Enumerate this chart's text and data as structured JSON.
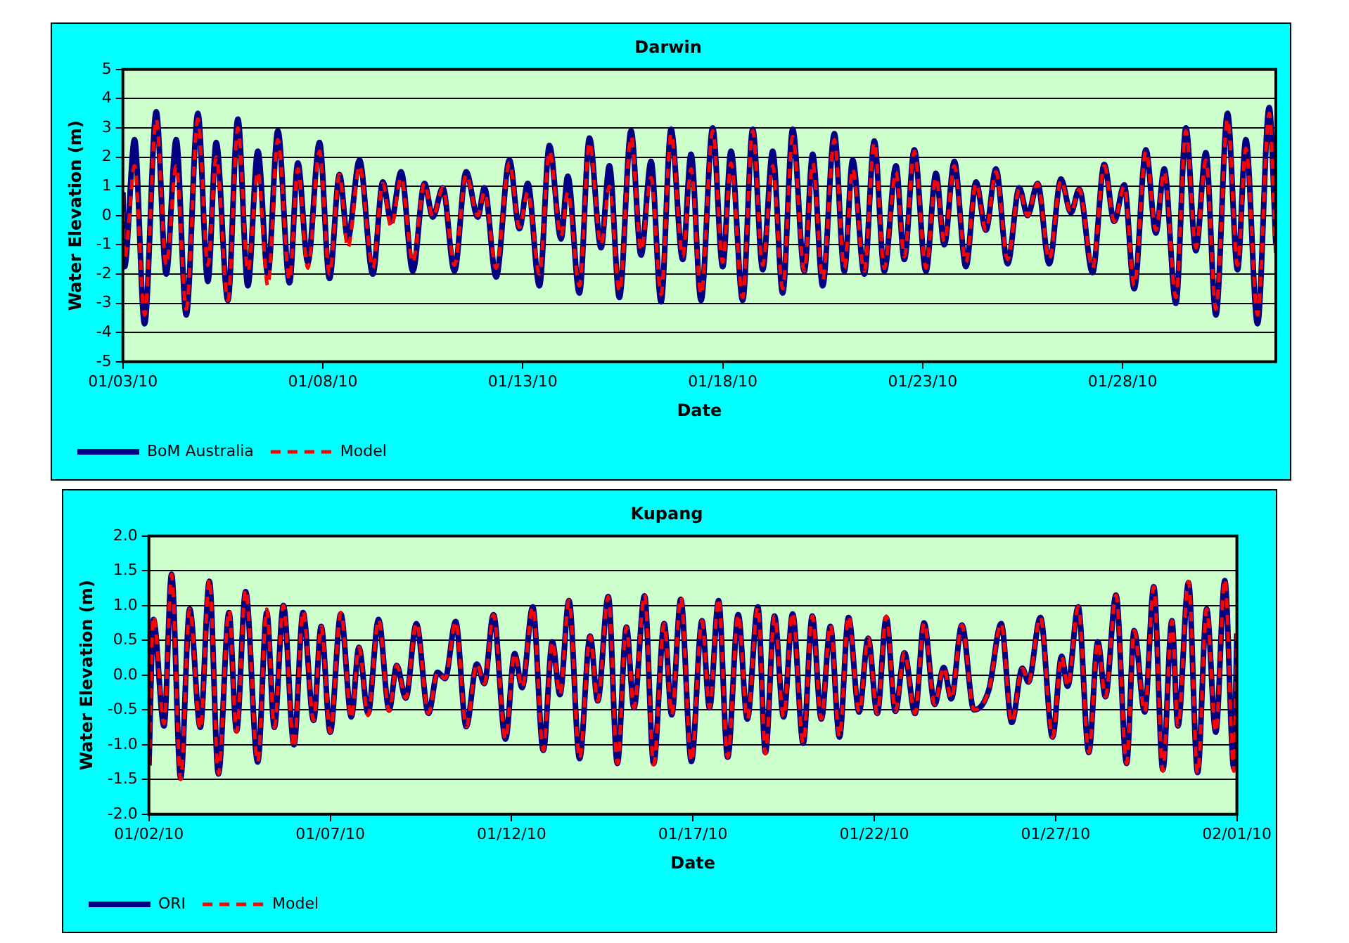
{
  "chart_data": [
    {
      "type": "line",
      "title": "Darwin",
      "xlabel": "Date",
      "ylabel": "Water Elevation (m)",
      "grid": "y",
      "legend": "bottom",
      "marker": "none",
      "x": [
        "--01-03T00:00",
        "--01-03T01:00",
        "--01-03T07:00",
        "--01-03T13:00",
        "--01-03T20:00",
        "--01-04T02:00",
        "--01-04T08:00",
        "--01-04T14:00",
        "--01-04T21:00",
        "--01-05T03:00",
        "--01-05T08:00",
        "--01-05T15:00",
        "--01-05T21:00",
        "--01-06T03:00",
        "--01-06T09:00",
        "--01-06T15:00",
        "--01-06T21:00",
        "--01-07T04:00",
        "--01-07T09:00",
        "--01-07T15:00",
        "--01-07T22:00",
        "--01-08T04:00",
        "--01-08T10:00",
        "--01-08T15:00",
        "--01-08T22:00",
        "--01-09T06:00",
        "--01-09T12:00",
        "--01-09T17:00",
        "--01-09T23:00",
        "--01-10T06:00",
        "--01-10T13:00",
        "--01-10T18:00",
        "--01-11T00:00",
        "--01-11T07:00",
        "--01-11T14:00",
        "--01-11T21:00",
        "--01-12T01:00",
        "--01-12T08:00",
        "--01-12T16:00",
        "--01-12T22:00",
        "--01-13T03:00",
        "--01-13T10:00",
        "--01-13T16:00",
        "--01-13T23:00",
        "--01-14T03:00",
        "--01-14T10:00",
        "--01-14T16:00",
        "--01-14T23:00",
        "--01-15T04:00",
        "--01-15T10:00",
        "--01-15T17:00",
        "--01-15T23:00",
        "--01-16T05:00",
        "--01-16T11:00",
        "--01-16T17:00",
        "--01-17T00:00",
        "--01-17T05:00",
        "--01-17T11:00",
        "--01-17T18:00",
        "--01-18T00:00",
        "--01-18T05:00",
        "--01-18T12:00",
        "--01-18T18:00",
        "--01-19T00:00",
        "--01-19T06:00",
        "--01-19T12:00",
        "--01-19T18:00",
        "--01-20T01:00",
        "--01-20T06:00",
        "--01-20T12:00",
        "--01-20T19:00",
        "--01-21T01:00",
        "--01-21T06:00",
        "--01-21T13:00",
        "--01-21T19:00",
        "--01-22T01:00",
        "--01-22T08:00",
        "--01-22T13:00",
        "--01-22T19:00",
        "--01-23T02:00",
        "--01-23T08:00",
        "--01-23T13:00",
        "--01-23T19:00",
        "--01-24T02:00",
        "--01-24T08:00",
        "--01-24T14:00",
        "--01-24T20:00",
        "--01-25T03:00",
        "--01-25T10:00",
        "--01-25T15:00",
        "--01-25T21:00",
        "--01-26T04:00",
        "--01-26T11:00",
        "--01-26T17:00",
        "--01-26T22:00",
        "--01-27T06:00",
        "--01-27T13:00",
        "--01-27T19:00",
        "--01-28T01:00",
        "--01-28T07:00",
        "--01-28T14:00",
        "--01-28T20:00",
        "--01-29T01:00",
        "--01-29T08:00",
        "--01-29T14:00",
        "--01-29T20:00",
        "--01-30T02:00",
        "--01-30T08:00",
        "--01-30T15:00",
        "--01-30T21:00",
        "--01-31T02:00",
        "--01-31T09:00",
        "--01-31T16:00",
        "--01-31T20:00"
      ],
      "xlim": [
        "--01-03T00:00",
        "--01-31T20:00"
      ],
      "xticks": [
        {
          "value": "--01-03",
          "label": "01/03/10"
        },
        {
          "value": "--01-08",
          "label": "01/08/10"
        },
        {
          "value": "--01-13",
          "label": "01/13/10"
        },
        {
          "value": "--01-18",
          "label": "01/18/10"
        },
        {
          "value": "--01-23",
          "label": "01/23/10"
        },
        {
          "value": "--01-28",
          "label": "01/28/10"
        }
      ],
      "ylim": [
        -5,
        5
      ],
      "yticks": [
        -5,
        -4,
        -3,
        -2,
        -1,
        0,
        1,
        2,
        3,
        4,
        5
      ],
      "series": [
        {
          "name": "BoM Australia",
          "color": "#000080",
          "line_style": "solid",
          "values": [
            0.8,
            -1.75,
            2.6,
            -3.7,
            3.55,
            -2.0,
            2.6,
            -3.4,
            3.5,
            -2.25,
            2.5,
            -2.9,
            3.3,
            -2.4,
            2.2,
            -2.0,
            2.9,
            -2.3,
            1.8,
            -1.6,
            2.5,
            -2.15,
            1.4,
            -0.8,
            1.9,
            -2.0,
            1.15,
            -0.2,
            1.5,
            -1.9,
            1.1,
            -0.05,
            0.95,
            -1.9,
            1.5,
            -0.05,
            0.95,
            -2.1,
            1.9,
            -0.45,
            1.1,
            -2.4,
            2.4,
            -0.8,
            1.35,
            -2.65,
            2.65,
            -1.1,
            1.7,
            -2.8,
            2.9,
            -1.35,
            1.85,
            -2.95,
            2.95,
            -1.5,
            2.1,
            -2.9,
            3.0,
            -1.75,
            2.2,
            -2.9,
            2.95,
            -1.85,
            2.2,
            -2.65,
            2.95,
            -1.9,
            2.1,
            -2.4,
            2.8,
            -1.9,
            1.9,
            -2.0,
            2.55,
            -1.9,
            1.7,
            -1.5,
            2.25,
            -1.9,
            1.45,
            -1.0,
            1.85,
            -1.75,
            1.15,
            -0.5,
            1.6,
            -1.65,
            0.95,
            0.0,
            1.1,
            -1.65,
            1.25,
            0.1,
            0.9,
            -1.95,
            1.75,
            -0.2,
            1.05,
            -2.5,
            2.25,
            -0.6,
            1.6,
            -3.0,
            3.0,
            -1.2,
            2.15,
            -3.4,
            3.5,
            -1.85,
            2.6,
            -3.7,
            3.7,
            -1.0
          ]
        },
        {
          "name": "Model",
          "color": "#ff0000",
          "line_style": "dashed",
          "values": [
            0.7,
            -1.5,
            1.7,
            -3.4,
            3.3,
            -1.7,
            1.7,
            -3.2,
            3.3,
            -1.7,
            2.0,
            -2.9,
            3.0,
            -1.9,
            1.5,
            -2.4,
            2.6,
            -2.2,
            1.6,
            -1.8,
            2.2,
            -2.0,
            1.4,
            -1.1,
            1.7,
            -1.8,
            1.1,
            -0.4,
            1.3,
            -1.6,
            1.1,
            -0.05,
            0.95,
            -1.7,
            1.4,
            0.0,
            0.8,
            -1.8,
            1.8,
            -0.4,
            0.8,
            -2.0,
            2.2,
            -0.7,
            0.8,
            -2.4,
            2.5,
            -1.0,
            1.0,
            -2.6,
            2.7,
            -1.2,
            1.3,
            -2.7,
            2.8,
            -1.4,
            1.6,
            -2.7,
            2.9,
            -1.6,
            1.8,
            -2.8,
            2.9,
            -1.7,
            1.7,
            -2.5,
            2.7,
            -1.9,
            1.8,
            -2.2,
            2.6,
            -1.8,
            1.6,
            -1.9,
            2.5,
            -1.8,
            1.5,
            -1.4,
            2.2,
            -1.8,
            1.3,
            -0.9,
            1.7,
            -1.6,
            1.1,
            -0.5,
            1.5,
            -1.5,
            0.9,
            0.0,
            1.1,
            -1.5,
            1.2,
            0.1,
            0.9,
            -1.8,
            1.7,
            -0.2,
            1.0,
            -2.4,
            2.2,
            -0.5,
            1.5,
            -2.8,
            2.9,
            -1.1,
            1.9,
            -3.2,
            3.3,
            -1.7,
            2.3,
            -3.4,
            3.5,
            -1.5
          ]
        }
      ]
    },
    {
      "type": "line",
      "title": "Kupang",
      "xlabel": "Date",
      "ylabel": "Water Elevation (m)",
      "grid": "y",
      "legend": "bottom",
      "marker": "none",
      "x": [
        "--01-02T00:00",
        "--01-02T03:00",
        "--01-02T10:00",
        "--01-02T15:00",
        "--01-02T21:00",
        "--01-03T03:00",
        "--01-03T10:00",
        "--01-03T16:00",
        "--01-03T22:00",
        "--01-04T05:00",
        "--01-04T10:00",
        "--01-04T16:00",
        "--01-05T00:00",
        "--01-05T06:00",
        "--01-05T11:00",
        "--01-05T17:00",
        "--01-06T00:00",
        "--01-06T06:00",
        "--01-06T13:00",
        "--01-06T18:00",
        "--01-07T00:00",
        "--01-07T07:00",
        "--01-07T14:00",
        "--01-07T19:00",
        "--01-08T01:00",
        "--01-08T08:00",
        "--01-08T15:00",
        "--01-08T20:00",
        "--01-09T02:00",
        "--01-09T09:00",
        "--01-09T17:00",
        "--01-09T23:00",
        "--01-10T04:00",
        "--01-10T11:00",
        "--01-10T18:00",
        "--01-11T01:00",
        "--01-11T06:00",
        "--01-11T12:00",
        "--01-11T20:00",
        "--01-12T02:00",
        "--01-12T07:00",
        "--01-12T14:00",
        "--01-12T21:00",
        "--01-13T03:00",
        "--01-13T08:00",
        "--01-13T14:00",
        "--01-13T21:00",
        "--01-14T04:00",
        "--01-14T09:00",
        "--01-14T16:00",
        "--01-14T22:00",
        "--01-15T04:00",
        "--01-15T09:00",
        "--01-15T16:00",
        "--01-15T22:00",
        "--01-16T05:00",
        "--01-16T10:00",
        "--01-16T16:00",
        "--01-16T23:00",
        "--01-17T06:00",
        "--01-17T11:00",
        "--01-17T17:00",
        "--01-17T23:00",
        "--01-18T06:00",
        "--01-18T12:00",
        "--01-18T19:00",
        "--01-19T00:00",
        "--01-19T06:00",
        "--01-19T12:00",
        "--01-19T18:00",
        "--01-20T01:00",
        "--01-20T07:00",
        "--01-20T13:00",
        "--01-20T19:00",
        "--01-21T01:00",
        "--01-21T07:00",
        "--01-21T14:00",
        "--01-21T20:00",
        "--01-22T02:00",
        "--01-22T08:00",
        "--01-22T14:00",
        "--01-22T20:00",
        "--01-23T03:00",
        "--01-23T09:00",
        "--01-23T16:00",
        "--01-23T22:00",
        "--01-24T03:00",
        "--01-24T10:00",
        "--01-24T18:00",
        "--01-25T04:00",
        "--01-25T12:00",
        "--01-25T19:00",
        "--01-26T02:00",
        "--01-26T06:00",
        "--01-26T14:00",
        "--01-26T22:00",
        "--01-27T04:00",
        "--01-27T08:00",
        "--01-27T15:00",
        "--01-27T22:00",
        "--01-28T04:00",
        "--01-28T09:00",
        "--01-28T16:00",
        "--01-28T23:00",
        "--01-29T04:00",
        "--01-29T11:00",
        "--01-29T17:00",
        "--01-29T23:00",
        "--01-30T05:00",
        "--01-30T09:00",
        "--01-30T16:00",
        "--01-30T22:00",
        "--01-31T04:00",
        "--01-31T10:00",
        "--01-31T16:00",
        "--01-31T22:00",
        "--02-01T00:00"
      ],
      "xlim": [
        "--01-02T00:00",
        "--02-01T00:00"
      ],
      "xticks": [
        {
          "value": "--01-02",
          "label": "01/02/10"
        },
        {
          "value": "--01-07",
          "label": "01/07/10"
        },
        {
          "value": "--01-12",
          "label": "01/12/10"
        },
        {
          "value": "--01-17",
          "label": "01/17/10"
        },
        {
          "value": "--01-22",
          "label": "01/22/10"
        },
        {
          "value": "--01-27",
          "label": "01/27/10"
        },
        {
          "value": "--02-01",
          "label": "02/01/10"
        }
      ],
      "ylim": [
        -2,
        2
      ],
      "yticks": [
        {
          "value": -2,
          "label": "-2.0"
        },
        {
          "value": -1.5,
          "label": "-1.5"
        },
        {
          "value": -1,
          "label": "-1.0"
        },
        {
          "value": -0.5,
          "label": "-0.5"
        },
        {
          "value": 0,
          "label": "0.0"
        },
        {
          "value": 0.5,
          "label": "0.5"
        },
        {
          "value": 1,
          "label": "1.0"
        },
        {
          "value": 1.5,
          "label": "1.5"
        },
        {
          "value": 2,
          "label": "2.0"
        }
      ],
      "series": [
        {
          "name": "ORI",
          "color": "#000080",
          "line_style": "solid",
          "values": [
            -1.3,
            0.8,
            -0.73,
            1.45,
            -1.48,
            0.95,
            -0.75,
            1.35,
            -1.42,
            0.9,
            -0.8,
            1.2,
            -1.25,
            0.9,
            -0.75,
            1.0,
            -1.0,
            0.9,
            -0.65,
            0.7,
            -0.82,
            0.88,
            -0.6,
            0.4,
            -0.55,
            0.8,
            -0.5,
            0.14,
            -0.33,
            0.74,
            -0.55,
            0.04,
            -0.05,
            0.77,
            -0.74,
            0.16,
            -0.12,
            0.87,
            -0.92,
            0.31,
            -0.18,
            0.98,
            -1.08,
            0.48,
            -0.28,
            1.07,
            -1.2,
            0.56,
            -0.37,
            1.13,
            -1.27,
            0.69,
            -0.47,
            1.14,
            -1.27,
            0.74,
            -0.57,
            1.09,
            -1.24,
            0.78,
            -0.47,
            1.07,
            -1.18,
            0.87,
            -0.63,
            0.98,
            -1.11,
            0.85,
            -0.6,
            0.88,
            -0.98,
            0.85,
            -0.63,
            0.7,
            -0.89,
            0.83,
            -0.53,
            0.53,
            -0.55,
            0.82,
            -0.52,
            0.32,
            -0.55,
            0.75,
            -0.42,
            0.11,
            -0.34,
            0.72,
            -0.5,
            -0.2,
            0.74,
            -0.68,
            0.1,
            -0.1,
            0.83,
            -0.89,
            0.27,
            -0.16,
            0.98,
            -1.11,
            0.48,
            -0.31,
            1.15,
            -1.27,
            0.64,
            -0.53,
            1.27,
            -1.36,
            0.78,
            -0.73,
            1.33,
            -1.4,
            0.95,
            -0.82,
            1.36,
            -1.34,
            0.6
          ]
        },
        {
          "name": "Model",
          "color": "#ff0000",
          "line_style": "dashed",
          "values": [
            -1.3,
            0.85,
            -0.7,
            1.45,
            -1.5,
            0.95,
            -0.78,
            1.38,
            -1.42,
            0.93,
            -0.82,
            1.23,
            -1.25,
            0.95,
            -0.75,
            1.0,
            -1.04,
            0.92,
            -0.65,
            0.7,
            -0.82,
            0.9,
            -0.62,
            0.4,
            -0.58,
            0.8,
            -0.52,
            0.14,
            -0.33,
            0.75,
            -0.55,
            0.04,
            -0.05,
            0.77,
            -0.74,
            0.16,
            -0.12,
            0.87,
            -0.92,
            0.31,
            -0.18,
            0.98,
            -1.08,
            0.48,
            -0.28,
            1.07,
            -1.2,
            0.56,
            -0.37,
            1.13,
            -1.27,
            0.69,
            -0.47,
            1.16,
            -1.29,
            0.74,
            -0.57,
            1.12,
            -1.24,
            0.78,
            -0.47,
            1.1,
            -1.18,
            0.87,
            -0.63,
            0.98,
            -1.13,
            0.85,
            -0.6,
            0.9,
            -0.98,
            0.85,
            -0.63,
            0.72,
            -0.89,
            0.85,
            -0.53,
            0.53,
            -0.55,
            0.85,
            -0.52,
            0.32,
            -0.55,
            0.75,
            -0.42,
            0.11,
            -0.34,
            0.72,
            -0.5,
            -0.2,
            0.74,
            -0.68,
            0.1,
            -0.1,
            0.83,
            -0.89,
            0.27,
            -0.16,
            0.98,
            -1.11,
            0.48,
            -0.31,
            1.15,
            -1.27,
            0.64,
            -0.53,
            1.27,
            -1.38,
            0.78,
            -0.73,
            1.35,
            -1.42,
            0.95,
            -0.82,
            1.38,
            -1.38,
            0.6
          ]
        }
      ]
    }
  ]
}
